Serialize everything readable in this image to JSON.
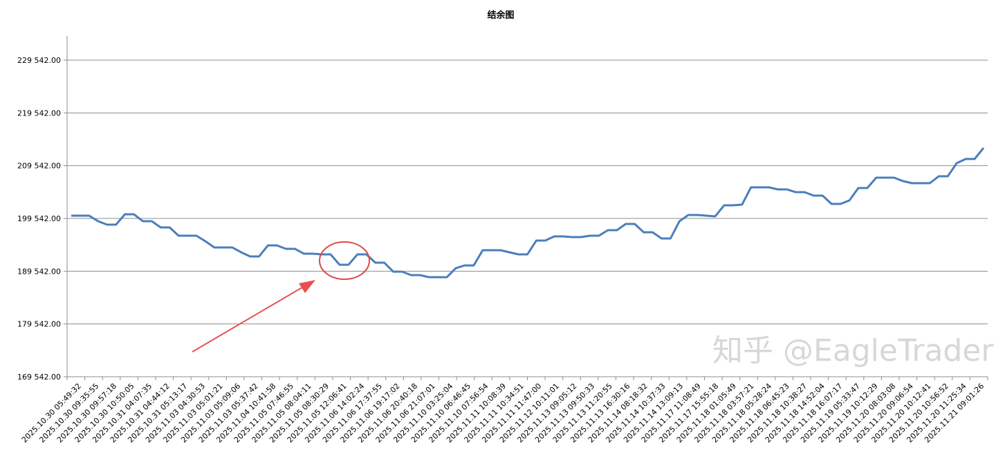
{
  "chart_data": {
    "type": "line",
    "title": "结余图",
    "xlabel": "",
    "ylabel": "",
    "ylim": [
      169542,
      229542
    ],
    "yticks": [
      "169 542.00",
      "179 542.00",
      "189 542.00",
      "199 542.00",
      "209 542.00",
      "219 542.00",
      "229 542.00"
    ],
    "ytick_values": [
      169542,
      179542,
      189542,
      199542,
      209542,
      219542,
      229542
    ],
    "grid": "horizontal",
    "line_color": "#4a7ebb",
    "x_labels": [
      "2025.10.30 05:49:32",
      "2025.10.30 09:35:55",
      "2025.10.30 09:57:18",
      "2025.10.30 10:50:05",
      "2025.10.31 04:07:35",
      "2025.10.31 04:44:12",
      "2025.10.31 05:13:17",
      "2025.11.03 04:30:53",
      "2025.11.03 05:01:21",
      "2025.11.03 05:09:06",
      "2025.11.03 05:37:42",
      "2025.11.04 10:41:58",
      "2025.11.05 07:46:55",
      "2025.11.05 08:04:11",
      "2025.11.05 08:30:29",
      "2025.11.05 12:06:41",
      "2025.11.06 14:02:24",
      "2025.11.06 17:37:55",
      "2025.11.06 19:17:02",
      "2025.11.06 20:40:18",
      "2025.11.06 21:07:01",
      "2025.11.10 03:25:04",
      "2025.11.10 06:46:45",
      "2025.11.10 07:56:54",
      "2025.11.11 10:08:39",
      "2025.11.11 10:34:51",
      "2025.11.11 11:47:00",
      "2025.11.12 10:11:01",
      "2025.11.13 09:05:12",
      "2025.11.13 09:50:33",
      "2025.11.13 11:20:55",
      "2025.11.13 16:30:16",
      "2025.11.14 08:18:32",
      "2025.11.14 10:37:33",
      "2025.11.14 13:09:13",
      "2025.11.17 11:08:49",
      "2025.11.17 15:55:18",
      "2025.11.18 01:05:49",
      "2025.11.18 03:57:21",
      "2025.11.18 05:28:24",
      "2025.11.18 06:45:23",
      "2025.11.18 10:38:27",
      "2025.11.18 14:52:04",
      "2025.11.18 16:07:17",
      "2025.11.19 05:33:47",
      "2025.11.19 10:12:29",
      "2025.11.20 08:03:08",
      "2025.11.20 09:06:54",
      "2025.11.20 10:12:41",
      "2025.11.20 10:56:52",
      "2025.11.20 11:25:34",
      "2025.11.21 09:01:26"
    ],
    "values": [
      200067,
      200067,
      200067,
      199019,
      198364,
      198364,
      200329,
      200329,
      199019,
      199019,
      197840,
      197840,
      196268,
      196268,
      196268,
      195220,
      194041,
      194041,
      194041,
      193124,
      192338,
      192338,
      194434,
      194434,
      193779,
      193779,
      192862,
      192862,
      192731,
      192731,
      190766,
      190766,
      192731,
      192731,
      191159,
      191159,
      189456,
      189456,
      188801,
      188801,
      188408,
      188408,
      188408,
      190111,
      190635,
      190635,
      193517,
      193517,
      193517,
      193124,
      192731,
      192731,
      195351,
      195351,
      196137,
      196137,
      196006,
      196006,
      196268,
      196268,
      197316,
      197316,
      198495,
      198495,
      196923,
      196923,
      195744,
      195744,
      199019,
      200198,
      200198,
      200067,
      199936,
      202032,
      202032,
      202163,
      205438,
      205438,
      205438,
      205045,
      205045,
      204521,
      204521,
      203866,
      203866,
      202294,
      202294,
      202949,
      205307,
      205307,
      207272,
      207272,
      207272,
      206617,
      206224,
      206224,
      206224,
      207534,
      207534,
      210023,
      210809,
      210809,
      212905
    ],
    "annotations": {
      "circle_color": "#e04848",
      "arrow_color": "#e85050"
    }
  },
  "watermark": "知乎 @EagleTrader"
}
